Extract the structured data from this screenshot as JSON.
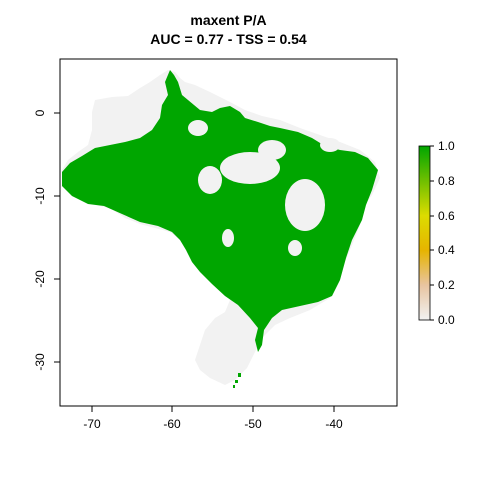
{
  "title": "maxent P/A",
  "subtitle": "AUC = 0.77 - TSS = 0.54",
  "map": {
    "x_range": [
      -74,
      -34
    ],
    "y_range": [
      -35,
      6
    ],
    "x_ticks": [
      -70,
      -60,
      -50,
      -40
    ],
    "y_ticks": [
      0,
      -10,
      -20,
      -30
    ],
    "x_tick_labels": [
      "-70",
      "-60",
      "-50",
      "-40"
    ],
    "y_tick_labels": [
      "0",
      "-10",
      "-20",
      "-30"
    ],
    "background_color": "#f2f2f2",
    "presence_color": "#00a600"
  },
  "legend": {
    "ticks": [
      "1.0",
      "0.8",
      "0.6",
      "0.4",
      "0.2",
      "0.0"
    ],
    "colors": [
      "#f2f2f2",
      "#e8c4a0",
      "#e6b400",
      "#dcdc00",
      "#6fbf00",
      "#00a600"
    ]
  }
}
